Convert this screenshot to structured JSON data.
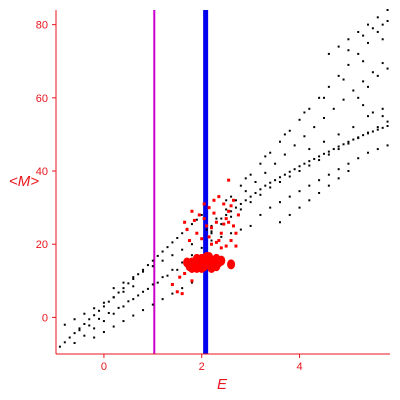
{
  "chart_data": {
    "type": "scatter",
    "title": "",
    "xlabel": "E",
    "ylabel": "<M>",
    "xlim": [
      -0.98,
      5.85
    ],
    "ylim": [
      -10,
      84
    ],
    "x_ticks": [
      0,
      2,
      4
    ],
    "y_ticks": [
      0,
      20,
      40,
      60,
      80
    ],
    "grid": false,
    "legend": "none",
    "colors": {
      "axis": "#e8141c",
      "background_points": "#000000",
      "highlight_points": "#ff0000",
      "line_magenta": "#cc00cc",
      "line_blue": "#0000ee"
    },
    "vertical_lines": [
      {
        "x": 1.03,
        "color": "#cc00cc",
        "width": "thin"
      },
      {
        "x": 2.08,
        "color": "#0000ee",
        "width": "thick"
      }
    ],
    "series": [
      {
        "color": "#000000",
        "marker": "small-dot",
        "points": [
          [
            -0.9,
            -8
          ],
          [
            -0.8,
            -6.8
          ],
          [
            -0.7,
            -5.5
          ],
          [
            -0.6,
            -4.3
          ],
          [
            -0.5,
            -3
          ],
          [
            -0.4,
            -1.8
          ],
          [
            -0.3,
            -0.5
          ],
          [
            -0.2,
            0.6
          ],
          [
            -0.1,
            1.8
          ],
          [
            0,
            3
          ],
          [
            0.1,
            4.3
          ],
          [
            0.2,
            5.5
          ],
          [
            0.3,
            6.8
          ],
          [
            0.4,
            8
          ],
          [
            0.5,
            9.3
          ],
          [
            0.6,
            10.5
          ],
          [
            0.7,
            11.8
          ],
          [
            0.8,
            13
          ],
          [
            0.9,
            14.3
          ],
          [
            1.0,
            15.5
          ],
          [
            1.1,
            16.8
          ],
          [
            1.2,
            18
          ],
          [
            1.3,
            19.2
          ],
          [
            1.4,
            20.5
          ],
          [
            1.5,
            21.7
          ],
          [
            1.6,
            23
          ],
          [
            1.7,
            24.2
          ],
          [
            1.8,
            25.5
          ],
          [
            1.9,
            26.7
          ],
          [
            2.0,
            28
          ],
          [
            -0.6,
            -7
          ],
          [
            -0.4,
            -5
          ],
          [
            -0.2,
            -3
          ],
          [
            0,
            -1
          ],
          [
            0.2,
            1
          ],
          [
            0.4,
            3
          ],
          [
            0.6,
            5
          ],
          [
            0.8,
            7
          ],
          [
            1.0,
            9
          ],
          [
            1.2,
            11
          ],
          [
            1.4,
            13
          ],
          [
            1.6,
            15
          ],
          [
            1.8,
            17
          ],
          [
            2.0,
            19
          ],
          [
            -0.5,
            -3.5
          ],
          [
            -0.3,
            -2.2
          ],
          [
            -0.1,
            -0.4
          ],
          [
            0.1,
            1.2
          ],
          [
            0.3,
            2.6
          ],
          [
            0.5,
            4.4
          ],
          [
            0.7,
            6
          ],
          [
            0.9,
            7.8
          ],
          [
            1.1,
            9.5
          ],
          [
            1.3,
            11.4
          ],
          [
            1.5,
            13
          ],
          [
            1.7,
            14.8
          ],
          [
            1.9,
            16.5
          ],
          [
            -0.2,
            -5.5
          ],
          [
            0,
            -4
          ],
          [
            0.2,
            -2.5
          ],
          [
            0.4,
            -1
          ],
          [
            0.6,
            0.5
          ],
          [
            0.8,
            2
          ],
          [
            1.0,
            3.5
          ],
          [
            1.2,
            5
          ],
          [
            1.4,
            6.5
          ],
          [
            1.6,
            8
          ],
          [
            1.8,
            9.5
          ],
          [
            0.2,
            8
          ],
          [
            0.4,
            9.5
          ],
          [
            0.6,
            11
          ],
          [
            0.8,
            12.5
          ],
          [
            1.0,
            14
          ],
          [
            1.2,
            15.5
          ],
          [
            1.4,
            17
          ],
          [
            1.6,
            18.5
          ],
          [
            1.8,
            20
          ],
          [
            2.0,
            21.5
          ],
          [
            2.2,
            23
          ],
          [
            -0.8,
            -2
          ],
          [
            -0.6,
            -0.5
          ],
          [
            -0.4,
            1
          ],
          [
            -0.2,
            2.5
          ],
          [
            0,
            4
          ],
          [
            0.2,
            5.5
          ],
          [
            0.4,
            7
          ],
          [
            0.6,
            8.5
          ],
          [
            2.1,
            24
          ],
          [
            2.2,
            25
          ],
          [
            2.3,
            26
          ],
          [
            2.4,
            27
          ],
          [
            2.5,
            28
          ],
          [
            2.6,
            29
          ],
          [
            2.7,
            30
          ],
          [
            2.8,
            31
          ],
          [
            2.9,
            32
          ],
          [
            3.0,
            33
          ],
          [
            3.1,
            34
          ],
          [
            3.2,
            35
          ],
          [
            3.3,
            36
          ],
          [
            3.4,
            36.8
          ],
          [
            3.5,
            37.5
          ],
          [
            3.6,
            38.3
          ],
          [
            3.7,
            39
          ],
          [
            3.8,
            39.8
          ],
          [
            3.9,
            40.5
          ],
          [
            4.0,
            41.3
          ],
          [
            4.1,
            42
          ],
          [
            4.2,
            42.7
          ],
          [
            4.3,
            43.3
          ],
          [
            4.4,
            44
          ],
          [
            4.5,
            44.7
          ],
          [
            4.6,
            45.3
          ],
          [
            4.7,
            46
          ],
          [
            4.8,
            46.7
          ],
          [
            4.9,
            47.3
          ],
          [
            5.0,
            48
          ],
          [
            5.1,
            48.6
          ],
          [
            5.2,
            49.2
          ],
          [
            5.3,
            49.8
          ],
          [
            5.4,
            50.3
          ],
          [
            5.5,
            50.8
          ],
          [
            5.6,
            51.3
          ],
          [
            5.7,
            51.8
          ],
          [
            5.8,
            52.3
          ],
          [
            2.2,
            23.5
          ],
          [
            2.4,
            25.5
          ],
          [
            2.6,
            27.5
          ],
          [
            2.8,
            29.5
          ],
          [
            3.0,
            31.5
          ],
          [
            3.2,
            33.5
          ],
          [
            3.4,
            35.5
          ],
          [
            3.6,
            37
          ],
          [
            3.8,
            38.5
          ],
          [
            4.0,
            40
          ],
          [
            4.2,
            41.5
          ],
          [
            4.4,
            43
          ],
          [
            4.6,
            44.5
          ],
          [
            4.8,
            46
          ],
          [
            5.0,
            47.5
          ],
          [
            5.2,
            49
          ],
          [
            5.4,
            50.5
          ],
          [
            5.6,
            52
          ],
          [
            5.8,
            53.5
          ],
          [
            2.3,
            27
          ],
          [
            2.5,
            29.5
          ],
          [
            2.7,
            32
          ],
          [
            2.9,
            34.5
          ],
          [
            3.1,
            37
          ],
          [
            3.3,
            39.5
          ],
          [
            3.5,
            42
          ],
          [
            3.7,
            44.5
          ],
          [
            3.9,
            47
          ],
          [
            4.1,
            49.5
          ],
          [
            4.3,
            52
          ],
          [
            4.5,
            54.5
          ],
          [
            4.7,
            57
          ],
          [
            4.9,
            59.5
          ],
          [
            5.1,
            62
          ],
          [
            5.3,
            64.5
          ],
          [
            5.5,
            67
          ],
          [
            5.7,
            69.5
          ],
          [
            2.6,
            33
          ],
          [
            2.8,
            36
          ],
          [
            3.0,
            39
          ],
          [
            3.2,
            42
          ],
          [
            3.4,
            45
          ],
          [
            3.6,
            48
          ],
          [
            3.8,
            51
          ],
          [
            4.0,
            54
          ],
          [
            4.2,
            57
          ],
          [
            4.4,
            60
          ],
          [
            4.6,
            63
          ],
          [
            4.8,
            66
          ],
          [
            5.0,
            69
          ],
          [
            5.2,
            72
          ],
          [
            5.4,
            75
          ],
          [
            5.6,
            78
          ],
          [
            5.8,
            81
          ],
          [
            2.5,
            32
          ],
          [
            2.9,
            38
          ],
          [
            3.3,
            44
          ],
          [
            3.7,
            50
          ],
          [
            4.1,
            56
          ],
          [
            4.5,
            60
          ],
          [
            4.9,
            65
          ],
          [
            5.3,
            70
          ],
          [
            5.7,
            76
          ],
          [
            4.6,
            72
          ],
          [
            4.8,
            74
          ],
          [
            5.0,
            76
          ],
          [
            5.2,
            78
          ],
          [
            5.4,
            80
          ],
          [
            5.6,
            82
          ],
          [
            5.8,
            84
          ],
          [
            5.0,
            73
          ],
          [
            5.3,
            77
          ],
          [
            5.5,
            79
          ],
          [
            5.7,
            80
          ],
          [
            3.2,
            28
          ],
          [
            3.4,
            30
          ],
          [
            3.6,
            31.5
          ],
          [
            3.8,
            33
          ],
          [
            4.0,
            34.5
          ],
          [
            4.2,
            36
          ],
          [
            4.4,
            37.5
          ],
          [
            4.6,
            39
          ],
          [
            4.8,
            40.5
          ],
          [
            5.0,
            42
          ],
          [
            5.2,
            43.5
          ],
          [
            5.4,
            45
          ],
          [
            5.6,
            46
          ],
          [
            5.8,
            47
          ],
          [
            3.6,
            26
          ],
          [
            3.8,
            28
          ],
          [
            4.0,
            30
          ],
          [
            4.2,
            32
          ],
          [
            4.4,
            34
          ],
          [
            4.6,
            36
          ],
          [
            4.8,
            38
          ],
          [
            5.0,
            40
          ],
          [
            2.2,
            21
          ],
          [
            2.4,
            22
          ],
          [
            2.6,
            23
          ],
          [
            2.8,
            24
          ],
          [
            3.0,
            25
          ],
          [
            5.2,
            60
          ],
          [
            5.4,
            63
          ],
          [
            5.6,
            66
          ],
          [
            5.8,
            68
          ],
          [
            5.3,
            58
          ],
          [
            5.5,
            56
          ],
          [
            5.7,
            55
          ],
          [
            4.2,
            46
          ],
          [
            4.5,
            48
          ],
          [
            4.8,
            50
          ],
          [
            5.1,
            52
          ],
          [
            5.4,
            55
          ],
          [
            5.7,
            57
          ]
        ]
      },
      {
        "color": "#ff0000",
        "marker": "large-dot",
        "points": [
          [
            1.75,
            14
          ],
          [
            1.8,
            15
          ],
          [
            1.85,
            14.5
          ],
          [
            1.9,
            13.5
          ],
          [
            1.95,
            15.5
          ],
          [
            2.0,
            16
          ],
          [
            2.05,
            14
          ],
          [
            2.1,
            15
          ],
          [
            2.15,
            16.5
          ],
          [
            2.2,
            14.5
          ],
          [
            2.25,
            15.5
          ],
          [
            2.3,
            14
          ],
          [
            2.35,
            15
          ],
          [
            2.6,
            14.5
          ],
          [
            1.8,
            13.5
          ],
          [
            1.9,
            16
          ],
          [
            2.0,
            13.5
          ],
          [
            2.1,
            16.5
          ],
          [
            2.2,
            13.5
          ],
          [
            2.3,
            16
          ],
          [
            1.7,
            15
          ],
          [
            2.4,
            15.5
          ]
        ]
      },
      {
        "color": "#ff0000",
        "marker": "small-dot",
        "points": [
          [
            1.4,
            9
          ],
          [
            1.5,
            7
          ],
          [
            1.55,
            11
          ],
          [
            1.6,
            6.5
          ],
          [
            1.65,
            12
          ],
          [
            1.8,
            10
          ],
          [
            1.85,
            26.5
          ],
          [
            1.8,
            29
          ],
          [
            2.05,
            27
          ],
          [
            2.1,
            25
          ],
          [
            2.15,
            22
          ],
          [
            2.2,
            20
          ],
          [
            2.2,
            24.5
          ],
          [
            2.25,
            28.5
          ],
          [
            2.3,
            26
          ],
          [
            2.3,
            20.5
          ],
          [
            2.35,
            21
          ],
          [
            2.4,
            23
          ],
          [
            2.45,
            25.5
          ],
          [
            2.5,
            27
          ],
          [
            2.55,
            29
          ],
          [
            2.6,
            30.5
          ],
          [
            2.65,
            32
          ],
          [
            2.4,
            19
          ],
          [
            2.5,
            19.5
          ],
          [
            2.6,
            21
          ],
          [
            2.7,
            19.5
          ],
          [
            2.75,
            28
          ],
          [
            2.55,
            37.5
          ],
          [
            1.9,
            23
          ],
          [
            2.0,
            21.5
          ],
          [
            1.95,
            28
          ],
          [
            2.05,
            31
          ],
          [
            2.15,
            30
          ],
          [
            2.25,
            32
          ],
          [
            2.35,
            33
          ],
          [
            2.45,
            31
          ],
          [
            2.55,
            26
          ],
          [
            2.65,
            25
          ],
          [
            2.7,
            23
          ],
          [
            1.7,
            24
          ],
          [
            1.65,
            26
          ],
          [
            1.75,
            21
          ]
        ]
      }
    ]
  }
}
